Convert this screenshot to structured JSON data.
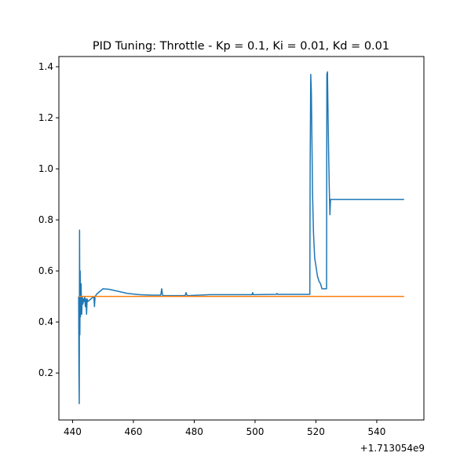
{
  "chart_data": {
    "type": "line",
    "title": "PID Tuning: Throttle - Kp = 0.1, Ki = 0.01, Kd = 0.01",
    "xlabel": "",
    "ylabel": "",
    "x_offset_label": "+1.713054e9",
    "xlim": [
      435.5,
      555.5
    ],
    "ylim": [
      0.016,
      1.44
    ],
    "x_ticks": [
      440,
      460,
      480,
      500,
      520,
      540
    ],
    "y_ticks": [
      0.2,
      0.4,
      0.6,
      0.8,
      1.0,
      1.2,
      1.4
    ],
    "x_tick_labels": [
      "440",
      "460",
      "480",
      "500",
      "520",
      "540"
    ],
    "y_tick_labels": [
      "0.2",
      "0.4",
      "0.6",
      "0.8",
      "1.0",
      "1.2",
      "1.4"
    ],
    "grid": false,
    "series": [
      {
        "color": "#1f77b4",
        "points": [
          [
            442.0,
            0.5
          ],
          [
            442.1,
            0.2
          ],
          [
            442.2,
            0.08
          ],
          [
            442.3,
            0.76
          ],
          [
            442.4,
            0.35
          ],
          [
            442.5,
            0.6
          ],
          [
            442.6,
            0.42
          ],
          [
            442.7,
            0.5
          ],
          [
            442.8,
            0.55
          ],
          [
            443.0,
            0.43
          ],
          [
            443.2,
            0.5
          ],
          [
            443.4,
            0.47
          ],
          [
            443.6,
            0.49
          ],
          [
            443.8,
            0.48
          ],
          [
            444.0,
            0.5
          ],
          [
            444.2,
            0.46
          ],
          [
            444.4,
            0.49
          ],
          [
            444.6,
            0.43
          ],
          [
            444.8,
            0.49
          ],
          [
            445.0,
            0.48
          ],
          [
            446.0,
            0.49
          ],
          [
            447.0,
            0.5
          ],
          [
            447.2,
            0.46
          ],
          [
            447.4,
            0.5
          ],
          [
            448.0,
            0.51
          ],
          [
            449.0,
            0.52
          ],
          [
            450.0,
            0.53
          ],
          [
            452.0,
            0.528
          ],
          [
            455.0,
            0.52
          ],
          [
            458.0,
            0.512
          ],
          [
            462.0,
            0.507
          ],
          [
            466.0,
            0.505
          ],
          [
            469.0,
            0.505
          ],
          [
            469.3,
            0.53
          ],
          [
            469.6,
            0.505
          ],
          [
            470.0,
            0.503
          ],
          [
            477.0,
            0.503
          ],
          [
            477.3,
            0.515
          ],
          [
            477.6,
            0.505
          ],
          [
            478.0,
            0.503
          ],
          [
            485.0,
            0.507
          ],
          [
            499.0,
            0.507
          ],
          [
            499.2,
            0.515
          ],
          [
            499.4,
            0.507
          ],
          [
            507.0,
            0.508
          ],
          [
            507.2,
            0.512
          ],
          [
            507.4,
            0.508
          ],
          [
            518.0,
            0.508
          ],
          [
            518.1,
            1.0
          ],
          [
            518.3,
            1.37
          ],
          [
            518.5,
            1.3
          ],
          [
            518.7,
            1.1
          ],
          [
            518.9,
            0.9
          ],
          [
            519.2,
            0.75
          ],
          [
            519.6,
            0.65
          ],
          [
            520.0,
            0.62
          ],
          [
            520.5,
            0.58
          ],
          [
            521.0,
            0.56
          ],
          [
            521.5,
            0.55
          ],
          [
            522.0,
            0.53
          ],
          [
            523.0,
            0.53
          ],
          [
            523.5,
            0.53
          ],
          [
            523.6,
            1.37
          ],
          [
            523.8,
            1.38
          ],
          [
            524.0,
            1.2
          ],
          [
            524.2,
            1.05
          ],
          [
            524.4,
            0.92
          ],
          [
            524.6,
            0.82
          ],
          [
            524.8,
            0.88
          ],
          [
            525.0,
            0.88
          ],
          [
            549.0,
            0.88
          ]
        ]
      },
      {
        "color": "#ff7f0e",
        "points": [
          [
            442.0,
            0.5
          ],
          [
            549.0,
            0.5
          ]
        ]
      }
    ]
  }
}
